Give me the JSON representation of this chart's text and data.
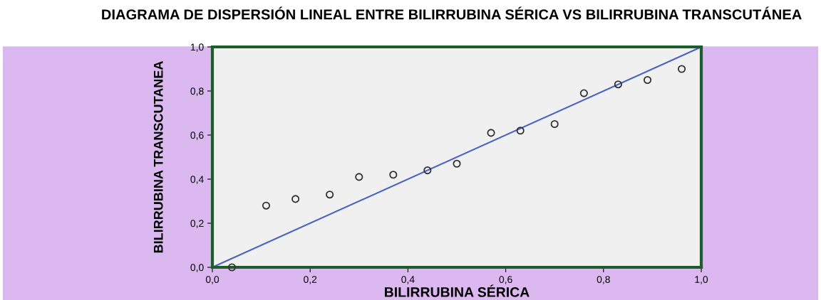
{
  "chart_data": {
    "type": "scatter",
    "title": "DIAGRAMA DE DISPERSIÓN LINEAL ENTRE BILIRRUBINA SÉRICA VS BILIRRUBINA TRANSCUTÁNEA",
    "xlabel": "BILIRRUBINA SÉRICA",
    "ylabel": "BILIRRUBINA TRANSCUTANEA",
    "series": [
      {
        "color": "#333333",
        "marker": "circle",
        "x": [
          0.04,
          0.11,
          0.17,
          0.24,
          0.3,
          0.37,
          0.44,
          0.5,
          0.57,
          0.63,
          0.7,
          0.76,
          0.83,
          0.89,
          0.96
        ],
        "values": [
          0.0,
          0.28,
          0.31,
          0.33,
          0.41,
          0.42,
          0.44,
          0.47,
          0.61,
          0.62,
          0.65,
          0.79,
          0.83,
          0.85,
          0.9
        ]
      },
      {
        "type": "line",
        "color": "#4a62c0",
        "x": [
          0,
          1
        ],
        "values": [
          0,
          1
        ]
      }
    ],
    "xlim": [
      0,
      1
    ],
    "ylim": [
      0,
      1
    ],
    "xticks": [
      {
        "value": 0,
        "label": "0,0"
      },
      {
        "value": 0.2,
        "label": "0,2"
      },
      {
        "value": 0.4,
        "label": "0,4"
      },
      {
        "value": 0.6,
        "label": "0,6"
      },
      {
        "value": 0.8,
        "label": "0,8"
      },
      {
        "value": 1,
        "label": "1,0"
      }
    ],
    "yticks": [
      {
        "value": 0,
        "label": "0,0"
      },
      {
        "value": 0.2,
        "label": "0,2"
      },
      {
        "value": 0.4,
        "label": "0,4"
      },
      {
        "value": 0.6,
        "label": "0,6"
      },
      {
        "value": 0.8,
        "label": "0,8"
      },
      {
        "value": 1,
        "label": "1,0"
      }
    ],
    "grid": false
  }
}
